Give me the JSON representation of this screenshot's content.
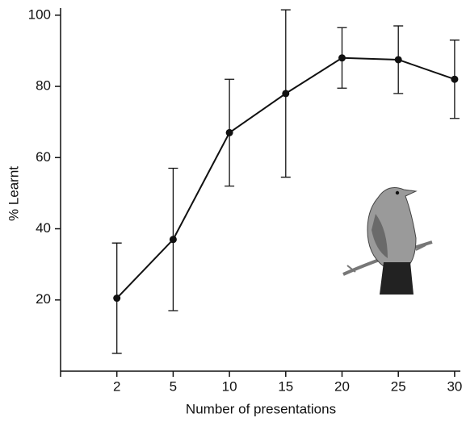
{
  "chart_data": {
    "type": "line",
    "x_label": "Number of presentations",
    "y_label": "% Learnt",
    "categories": [
      "2",
      "5",
      "10",
      "15",
      "20",
      "25",
      "30"
    ],
    "values": [
      20.5,
      37,
      67,
      78,
      88,
      87.5,
      82
    ],
    "errors": [
      15.5,
      20,
      15,
      23.5,
      8.5,
      9.5,
      11
    ],
    "color": "#111111",
    "ylim": [
      0,
      102
    ],
    "yticks": [
      20,
      40,
      60,
      80,
      100
    ]
  }
}
